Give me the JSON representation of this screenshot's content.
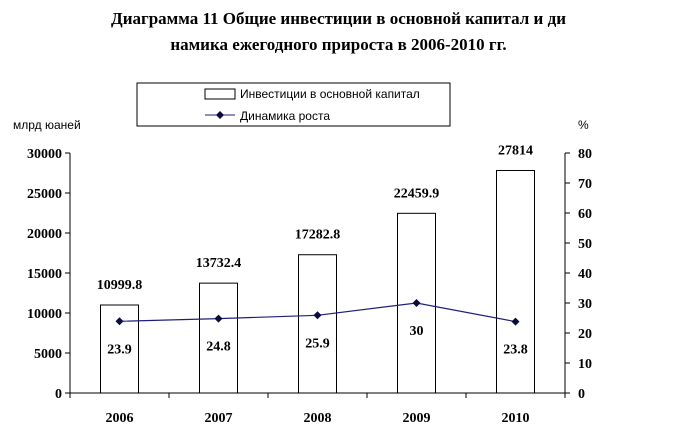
{
  "title_line1": "Диаграмма 11 Общие инвестиции в основной капитал и ди",
  "title_line2": "намика ежегодного прироста в 2006-2010 гг.",
  "chart_data": {
    "type": "bar",
    "categories": [
      "2006",
      "2007",
      "2008",
      "2009",
      "2010"
    ],
    "series": [
      {
        "name": "Инвестиции в основной капитал",
        "type": "bar",
        "axis": "left",
        "values": [
          10999.8,
          13732.4,
          17282.8,
          22459.9,
          27814
        ],
        "labels": [
          "10999.8",
          "13732.4",
          "17282.8",
          "22459.9",
          "27814"
        ]
      },
      {
        "name": "Динамика роста",
        "type": "line",
        "axis": "right",
        "values": [
          23.9,
          24.8,
          25.9,
          30,
          23.8
        ],
        "labels": [
          "23.9",
          "24.8",
          "25.9",
          "30",
          "23.8"
        ]
      }
    ],
    "left_axis": {
      "label": "млрд юаней",
      "ylim": [
        0,
        30000
      ],
      "ticks": [
        "0",
        "5000",
        "10000",
        "15000",
        "20000",
        "25000",
        "30000"
      ]
    },
    "right_axis": {
      "label": "%",
      "ylim": [
        0,
        80
      ],
      "ticks": [
        "0",
        "10",
        "20",
        "30",
        "40",
        "50",
        "60",
        "70",
        "80"
      ]
    },
    "legend_position": "top",
    "grid": false,
    "colors": {
      "bar_fill": "#ffffff",
      "bar_stroke": "#000000",
      "line": "#1f1f7a",
      "marker": "#0a0a3c"
    }
  }
}
